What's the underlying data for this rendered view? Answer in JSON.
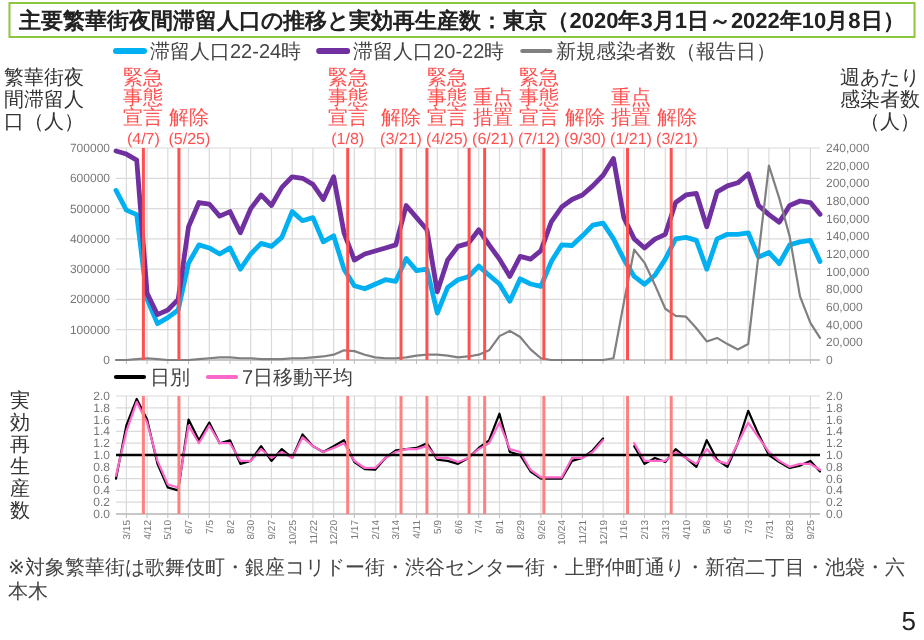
{
  "chart_data": [
    {
      "type": "line",
      "title": "主要繁華街夜間滞留人口の推移と実効再生産数：東京（2020年3月1日～2022年10月8日）",
      "ylabel": "繁華街夜間滞留人口（人）",
      "y2label": "週あたり感染者数（人）",
      "x": [
        "2020-03-01",
        "2020-03-15",
        "2020-03-29",
        "2020-04-12",
        "2020-04-26",
        "2020-05-10",
        "2020-05-24",
        "2020-06-07",
        "2020-06-21",
        "2020-07-05",
        "2020-07-19",
        "2020-08-02",
        "2020-08-16",
        "2020-08-30",
        "2020-09-13",
        "2020-09-27",
        "2020-10-11",
        "2020-10-25",
        "2020-11-08",
        "2020-11-22",
        "2020-12-06",
        "2020-12-20",
        "2021-01-03",
        "2021-01-17",
        "2021-01-31",
        "2021-02-14",
        "2021-02-28",
        "2021-03-14",
        "2021-03-28",
        "2021-04-11",
        "2021-04-25",
        "2021-05-09",
        "2021-05-23",
        "2021-06-06",
        "2021-06-20",
        "2021-07-04",
        "2021-07-18",
        "2021-08-01",
        "2021-08-15",
        "2021-08-29",
        "2021-09-12",
        "2021-09-26",
        "2021-10-10",
        "2021-10-24",
        "2021-11-07",
        "2021-11-21",
        "2021-12-05",
        "2021-12-19",
        "2022-01-02",
        "2022-01-16",
        "2022-01-30",
        "2022-02-13",
        "2022-02-27",
        "2022-03-13",
        "2022-03-27",
        "2022-04-10",
        "2022-04-24",
        "2022-05-08",
        "2022-05-22",
        "2022-06-05",
        "2022-06-19",
        "2022-07-03",
        "2022-07-17",
        "2022-07-31",
        "2022-08-14",
        "2022-08-28",
        "2022-09-11",
        "2022-09-25",
        "2022-10-08"
      ],
      "xlim": [
        "2020-03-01",
        "2022-10-08"
      ],
      "xticks": [
        {
          "value": "2020-03-15",
          "label": null
        },
        {
          "value": "2020-04-12",
          "label": null
        },
        {
          "value": "2020-05-10",
          "label": null
        },
        {
          "value": "2020-06-07",
          "label": null
        },
        {
          "value": "2020-07-05",
          "label": null
        },
        {
          "value": "2020-08-02",
          "label": null
        },
        {
          "value": "2020-08-30",
          "label": null
        },
        {
          "value": "2020-09-27",
          "label": null
        },
        {
          "value": "2020-10-25",
          "label": null
        },
        {
          "value": "2020-11-22",
          "label": null
        },
        {
          "value": "2020-12-20",
          "label": null
        },
        {
          "value": "2021-01-17",
          "label": null
        },
        {
          "value": "2021-02-14",
          "label": null
        },
        {
          "value": "2021-03-14",
          "label": null
        },
        {
          "value": "2021-04-11",
          "label": null
        },
        {
          "value": "2021-05-09",
          "label": null
        },
        {
          "value": "2021-06-06",
          "label": null
        },
        {
          "value": "2021-07-04",
          "label": null
        },
        {
          "value": "2021-08-01",
          "label": null
        },
        {
          "value": "2021-08-29",
          "label": null
        },
        {
          "value": "2021-09-26",
          "label": null
        },
        {
          "value": "2021-10-24",
          "label": null
        },
        {
          "value": "2021-11-21",
          "label": null
        },
        {
          "value": "2021-12-19",
          "label": null
        },
        {
          "value": "2022-01-16",
          "label": null
        },
        {
          "value": "2022-02-13",
          "label": null
        },
        {
          "value": "2022-03-13",
          "label": null
        },
        {
          "value": "2022-04-10",
          "label": null
        },
        {
          "value": "2022-05-08",
          "label": null
        },
        {
          "value": "2022-06-05",
          "label": null
        },
        {
          "value": "2022-07-03",
          "label": null
        },
        {
          "value": "2022-07-31",
          "label": null
        },
        {
          "value": "2022-08-28",
          "label": null
        },
        {
          "value": "2022-09-25",
          "label": null
        }
      ],
      "ylim": [
        0,
        700000
      ],
      "yticks": [
        0,
        100000,
        200000,
        300000,
        400000,
        500000,
        600000,
        700000
      ],
      "y2lim": [
        0,
        240000
      ],
      "y2ticks": [
        {
          "value": 0,
          "label": "0"
        },
        {
          "value": 20000,
          "label": "20,000"
        },
        {
          "value": 40000,
          "label": "40,000"
        },
        {
          "value": 60000,
          "label": "60,000"
        },
        {
          "value": 80000,
          "label": "80,000"
        },
        {
          "value": 100000,
          "label": "100,000"
        },
        {
          "value": 120000,
          "label": "120,000"
        },
        {
          "value": 140000,
          "label": "140,000"
        },
        {
          "value": 160000,
          "label": "160,000"
        },
        {
          "value": 180000,
          "label": "180,000"
        },
        {
          "value": 200000,
          "label": "200,000"
        },
        {
          "value": 220000,
          "label": "220,000"
        },
        {
          "value": 240000,
          "label": "240,000"
        }
      ],
      "tick_labels": "y",
      "grid": true,
      "legend": "top",
      "series": [
        {
          "name": "滞留人口22-24時",
          "color": "#00b0f0",
          "values": [
            560000,
            495000,
            480000,
            200000,
            120000,
            140000,
            165000,
            320000,
            380000,
            370000,
            350000,
            370000,
            300000,
            350000,
            385000,
            375000,
            405000,
            490000,
            460000,
            470000,
            390000,
            410000,
            300000,
            245000,
            235000,
            250000,
            265000,
            260000,
            335000,
            295000,
            300000,
            155000,
            240000,
            265000,
            275000,
            310000,
            280000,
            251000,
            194000,
            268000,
            251000,
            243000,
            325000,
            380000,
            378000,
            410000,
            445000,
            452000,
            400000,
            333000,
            276000,
            250000,
            280000,
            333000,
            400000,
            405000,
            395000,
            300000,
            400000,
            415000,
            415000,
            420000,
            340000,
            355000,
            318000,
            380000,
            390000,
            395000,
            325000
          ]
        },
        {
          "name": "滞留人口20-22時",
          "color": "#7030a0",
          "values": [
            690000,
            680000,
            660000,
            220000,
            150000,
            165000,
            200000,
            440000,
            520000,
            515000,
            475000,
            490000,
            420000,
            500000,
            545000,
            510000,
            570000,
            605000,
            600000,
            580000,
            530000,
            605000,
            420000,
            330000,
            350000,
            360000,
            370000,
            380000,
            510000,
            470000,
            430000,
            225000,
            330000,
            375000,
            385000,
            430000,
            380000,
            333000,
            276000,
            342000,
            333000,
            361000,
            456000,
            505000,
            530000,
            545000,
            575000,
            610000,
            665000,
            470000,
            400000,
            370000,
            399000,
            415000,
            520000,
            545000,
            550000,
            440000,
            555000,
            575000,
            585000,
            615000,
            510000,
            480000,
            455000,
            510000,
            525000,
            520000,
            481000
          ]
        },
        {
          "name": "新規感染者数（報告日）",
          "color": "#808080",
          "axis": "y2",
          "values": [
            0,
            0,
            1000,
            2000,
            1000,
            0,
            0,
            0,
            1000,
            2000,
            3000,
            3000,
            2000,
            2000,
            1000,
            1000,
            1000,
            2000,
            2000,
            3000,
            4000,
            6000,
            11000,
            10000,
            6000,
            3000,
            2000,
            2000,
            3000,
            5000,
            6000,
            6000,
            5000,
            3000,
            4000,
            6000,
            11000,
            27000,
            33000,
            26000,
            12000,
            2000,
            0,
            0,
            0,
            0,
            0,
            0,
            2000,
            65000,
            125000,
            110000,
            85000,
            58000,
            50000,
            49000,
            36000,
            21000,
            25000,
            18000,
            12000,
            18000,
            120000,
            220000,
            183000,
            140000,
            72000,
            42000,
            25000
          ]
        }
      ],
      "ref_lines": [
        {
          "axis": "x",
          "value": "2020-04-07",
          "label": "緊急事態宣言(4/7)",
          "color": "#ff5050"
        },
        {
          "axis": "x",
          "value": "2020-05-25",
          "label": "解除(5/25)",
          "color": "#ff5050"
        },
        {
          "axis": "x",
          "value": "2021-01-08",
          "label": "緊急事態宣言(1/8)",
          "color": "#ff5050"
        },
        {
          "axis": "x",
          "value": "2021-03-21",
          "label": "解除(3/21)",
          "color": "#ff5050"
        },
        {
          "axis": "x",
          "value": "2021-04-25",
          "label": "緊急事態宣言(4/25)",
          "color": "#ff5050"
        },
        {
          "axis": "x",
          "value": "2021-06-21",
          "label": "重点措置(6/21)",
          "color": "#ff5050"
        },
        {
          "axis": "x",
          "value": "2021-07-12",
          "label": "緊急事態宣言(7/12)",
          "color": "#ff5050"
        },
        {
          "axis": "x",
          "value": "2021-09-30",
          "label": "解除(9/30)",
          "color": "#ff5050"
        },
        {
          "axis": "x",
          "value": "2022-01-21",
          "label": "重点措置(1/21)",
          "color": "#ff5050"
        },
        {
          "axis": "x",
          "value": "2022-03-21",
          "label": "解除(3/21)",
          "color": "#ff5050"
        }
      ]
    },
    {
      "type": "line",
      "ylabel": "実効再生産数",
      "x": [
        "2020-03-01",
        "2020-03-15",
        "2020-03-29",
        "2020-04-12",
        "2020-04-26",
        "2020-05-10",
        "2020-05-24",
        "2020-06-07",
        "2020-06-21",
        "2020-07-05",
        "2020-07-19",
        "2020-08-02",
        "2020-08-16",
        "2020-08-30",
        "2020-09-13",
        "2020-09-27",
        "2020-10-11",
        "2020-10-25",
        "2020-11-08",
        "2020-11-22",
        "2020-12-06",
        "2020-12-20",
        "2021-01-03",
        "2021-01-17",
        "2021-01-31",
        "2021-02-14",
        "2021-02-28",
        "2021-03-14",
        "2021-03-28",
        "2021-04-11",
        "2021-04-25",
        "2021-05-09",
        "2021-05-23",
        "2021-06-06",
        "2021-06-20",
        "2021-07-04",
        "2021-07-18",
        "2021-08-01",
        "2021-08-15",
        "2021-08-29",
        "2021-09-12",
        "2021-09-26",
        "2021-10-10",
        "2021-10-24",
        "2021-11-07",
        "2021-11-21",
        "2021-12-05",
        "2021-12-19",
        "2022-01-02",
        "2022-01-16",
        "2022-01-30",
        "2022-02-13",
        "2022-02-27",
        "2022-03-13",
        "2022-03-27",
        "2022-04-10",
        "2022-04-24",
        "2022-05-08",
        "2022-05-22",
        "2022-06-05",
        "2022-06-19",
        "2022-07-03",
        "2022-07-17",
        "2022-07-31",
        "2022-08-14",
        "2022-08-28",
        "2022-09-11",
        "2022-09-25",
        "2022-10-08"
      ],
      "xlim": [
        "2020-03-01",
        "2022-10-08"
      ],
      "xticks": [
        {
          "value": "2020-03-15",
          "label": "3/15"
        },
        {
          "value": "2020-04-12",
          "label": "4/12"
        },
        {
          "value": "2020-05-10",
          "label": "5/10"
        },
        {
          "value": "2020-06-07",
          "label": "6/7"
        },
        {
          "value": "2020-07-05",
          "label": "7/5"
        },
        {
          "value": "2020-08-02",
          "label": "8/2"
        },
        {
          "value": "2020-08-30",
          "label": "8/30"
        },
        {
          "value": "2020-09-27",
          "label": "9/27"
        },
        {
          "value": "2020-10-25",
          "label": "10/25"
        },
        {
          "value": "2020-11-22",
          "label": "11/22"
        },
        {
          "value": "2020-12-20",
          "label": "12/20"
        },
        {
          "value": "2021-01-17",
          "label": "1/17"
        },
        {
          "value": "2021-02-14",
          "label": "2/14"
        },
        {
          "value": "2021-03-14",
          "label": "3/14"
        },
        {
          "value": "2021-04-11",
          "label": "4/11"
        },
        {
          "value": "2021-05-09",
          "label": "5/9"
        },
        {
          "value": "2021-06-06",
          "label": "6/6"
        },
        {
          "value": "2021-07-04",
          "label": "7/4"
        },
        {
          "value": "2021-08-01",
          "label": "8/1"
        },
        {
          "value": "2021-08-29",
          "label": "8/29"
        },
        {
          "value": "2021-09-26",
          "label": "9/26"
        },
        {
          "value": "2021-10-24",
          "label": "10/24"
        },
        {
          "value": "2021-11-21",
          "label": "11/21"
        },
        {
          "value": "2021-12-19",
          "label": "12/19"
        },
        {
          "value": "2022-01-16",
          "label": "1/16"
        },
        {
          "value": "2022-02-13",
          "label": "2/13"
        },
        {
          "value": "2022-03-13",
          "label": "3/13"
        },
        {
          "value": "2022-04-10",
          "label": "4/10"
        },
        {
          "value": "2022-05-08",
          "label": "5/8"
        },
        {
          "value": "2022-06-05",
          "label": "6/5"
        },
        {
          "value": "2022-07-03",
          "label": "7/3"
        },
        {
          "value": "2022-07-31",
          "label": "7/31"
        },
        {
          "value": "2022-08-28",
          "label": "8/28"
        },
        {
          "value": "2022-09-25",
          "label": "9/25"
        }
      ],
      "ylim": [
        0,
        2
      ],
      "yticks": [
        {
          "value": 0,
          "label": "0.0"
        },
        {
          "value": 0.2,
          "label": "0.2"
        },
        {
          "value": 0.4,
          "label": "0.4"
        },
        {
          "value": 0.6,
          "label": "0.6"
        },
        {
          "value": 0.8,
          "label": "0.8"
        },
        {
          "value": 1,
          "label": "1.0"
        },
        {
          "value": 1.2,
          "label": "1.2"
        },
        {
          "value": 1.4,
          "label": "1.4"
        },
        {
          "value": 1.6,
          "label": "1.6"
        },
        {
          "value": 1.8,
          "label": "1.8"
        },
        {
          "value": 2,
          "label": "2.0"
        }
      ],
      "y2lim": [
        0,
        2
      ],
      "y2ticks": [
        {
          "value": 0,
          "label": "0.0"
        },
        {
          "value": 0.2,
          "label": "0.2"
        },
        {
          "value": 0.4,
          "label": "0.4"
        },
        {
          "value": 0.6,
          "label": "0.6"
        },
        {
          "value": 0.8,
          "label": "0.8"
        },
        {
          "value": 1,
          "label": "1.0"
        },
        {
          "value": 1.2,
          "label": "1.2"
        },
        {
          "value": 1.4,
          "label": "1.4"
        },
        {
          "value": 1.6,
          "label": "1.6"
        },
        {
          "value": 1.8,
          "label": "1.8"
        },
        {
          "value": 2,
          "label": "2.0"
        }
      ],
      "grid": true,
      "legend": "top",
      "series": [
        {
          "name": "日別",
          "color": "#000000",
          "values": [
            0.6,
            1.5,
            1.95,
            1.6,
            0.85,
            0.45,
            0.4,
            1.6,
            1.25,
            1.55,
            1.2,
            1.25,
            0.85,
            0.9,
            1.15,
            0.9,
            1.1,
            0.95,
            1.35,
            1.15,
            1.05,
            1.15,
            1.25,
            0.88,
            0.76,
            0.75,
            0.95,
            1.08,
            1.1,
            1.12,
            1.2,
            0.92,
            0.9,
            0.85,
            0.95,
            1.12,
            1.25,
            1.7,
            1.05,
            1.0,
            0.72,
            0.6,
            0.6,
            0.6,
            0.9,
            0.95,
            1.08,
            1.28,
            null,
            null,
            1.15,
            0.85,
            0.95,
            0.88,
            1.1,
            0.95,
            0.8,
            1.25,
            0.92,
            0.8,
            1.2,
            1.75,
            1.35,
            1.0,
            0.88,
            0.78,
            0.82,
            0.9,
            0.72
          ]
        },
        {
          "name": "7日移動平均",
          "color": "#ff66cc",
          "values": [
            0.65,
            1.4,
            1.9,
            1.55,
            0.9,
            0.5,
            0.45,
            1.5,
            1.2,
            1.5,
            1.2,
            1.2,
            0.9,
            0.9,
            1.1,
            0.95,
            1.05,
            0.95,
            1.3,
            1.15,
            1.05,
            1.12,
            1.2,
            0.9,
            0.78,
            0.78,
            0.95,
            1.05,
            1.1,
            1.1,
            1.15,
            0.95,
            0.95,
            0.88,
            0.95,
            1.1,
            1.2,
            1.55,
            1.1,
            1.05,
            0.75,
            0.62,
            0.62,
            0.62,
            0.95,
            0.95,
            1.05,
            1.25,
            null,
            null,
            1.2,
            0.9,
            0.9,
            0.9,
            1.05,
            0.95,
            0.85,
            1.1,
            0.9,
            0.85,
            1.2,
            1.55,
            1.3,
            1.05,
            0.9,
            0.8,
            0.85,
            0.85,
            0.75
          ]
        }
      ],
      "ref_lines": [
        {
          "axis": "y",
          "value": 1,
          "color": "#000000"
        },
        {
          "axis": "x",
          "value": "2020-04-07",
          "color": "#ff8080"
        },
        {
          "axis": "x",
          "value": "2020-05-25",
          "color": "#ff8080"
        },
        {
          "axis": "x",
          "value": "2021-01-08",
          "color": "#ff8080"
        },
        {
          "axis": "x",
          "value": "2021-03-21",
          "color": "#ff8080"
        },
        {
          "axis": "x",
          "value": "2021-04-25",
          "color": "#ff8080"
        },
        {
          "axis": "x",
          "value": "2021-06-21",
          "color": "#ff8080"
        },
        {
          "axis": "x",
          "value": "2021-07-12",
          "color": "#ff8080"
        },
        {
          "axis": "x",
          "value": "2021-09-30",
          "color": "#ff8080"
        },
        {
          "axis": "x",
          "value": "2022-01-21",
          "color": "#ff8080"
        },
        {
          "axis": "x",
          "value": "2022-03-21",
          "color": "#ff8080"
        }
      ],
      "annotations": [
        "※対象繁華街は歌舞伎町・銀座コリドー街・渋谷センター街・上野仲町通り・新宿二丁目・池袋・六本木",
        "5"
      ]
    }
  ]
}
